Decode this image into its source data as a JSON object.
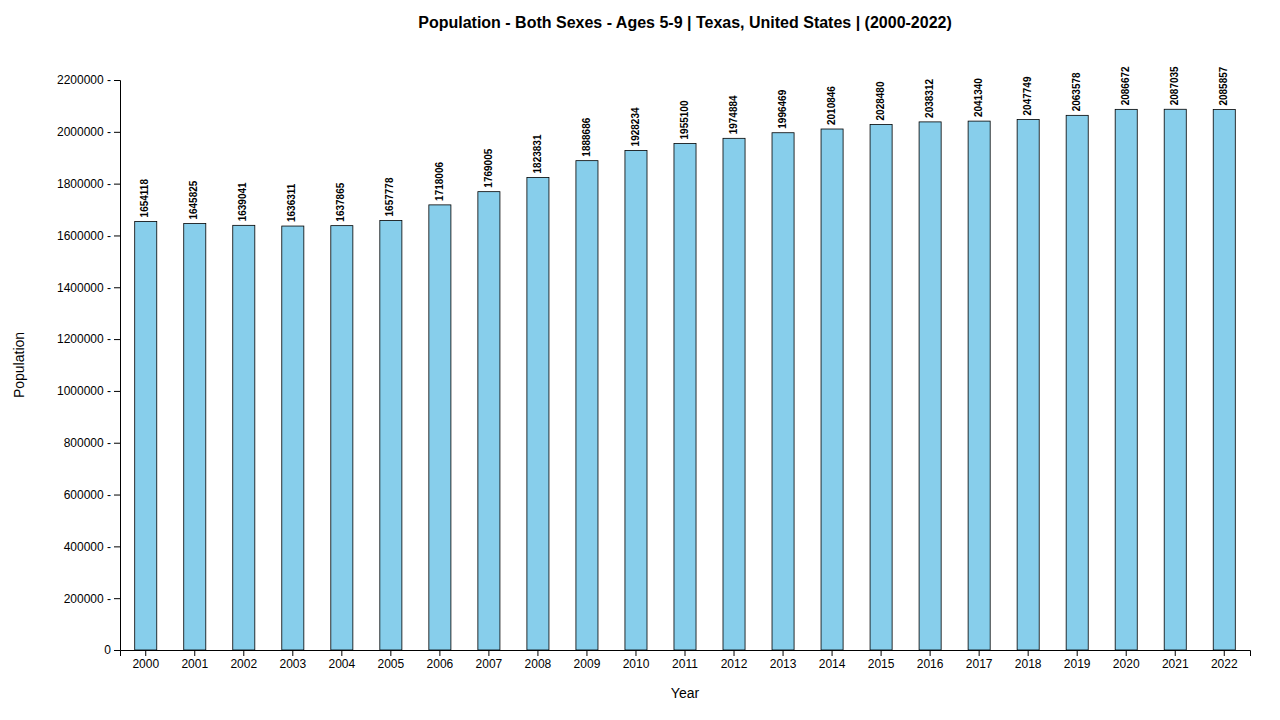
{
  "chart_data": {
    "type": "bar",
    "title": "Population - Both Sexes - Ages 5-9 | Texas, United States |  (2000-2022)",
    "x_label": "Year",
    "y_label": "Population",
    "categories": [
      "2000",
      "2001",
      "2002",
      "2003",
      "2004",
      "2005",
      "2006",
      "2007",
      "2008",
      "2009",
      "2010",
      "2011",
      "2012",
      "2013",
      "2014",
      "2015",
      "2016",
      "2017",
      "2018",
      "2019",
      "2020",
      "2021",
      "2022"
    ],
    "values": [
      1654118,
      1645825,
      1639041,
      1636311,
      1637865,
      1657778,
      1718006,
      1769005,
      1823831,
      1888686,
      1928234,
      1955100,
      1974884,
      1996469,
      2010846,
      2028480,
      2038312,
      2041340,
      2047749,
      2063578,
      2086672,
      2087035,
      2085857
    ],
    "color": "#87CEEB",
    "ylim": [
      0,
      2200000
    ],
    "yticks": [
      0,
      {
        "value": 200000,
        "label": "200000 -"
      },
      {
        "value": 400000,
        "label": "400000 -"
      },
      {
        "value": 600000,
        "label": "600000 -"
      },
      {
        "value": 800000,
        "label": "800000 -"
      },
      {
        "value": 1000000,
        "label": "1000000 -"
      },
      {
        "value": 1200000,
        "label": "1200000 -"
      },
      {
        "value": 1400000,
        "label": "1400000 -"
      },
      {
        "value": 1600000,
        "label": "1600000 -"
      },
      {
        "value": 1800000,
        "label": "1800000 -"
      },
      {
        "value": 2000000,
        "label": "2000000 -"
      },
      {
        "value": 2200000,
        "label": "2200000 -"
      }
    ],
    "data_labels": true,
    "grid": false
  }
}
